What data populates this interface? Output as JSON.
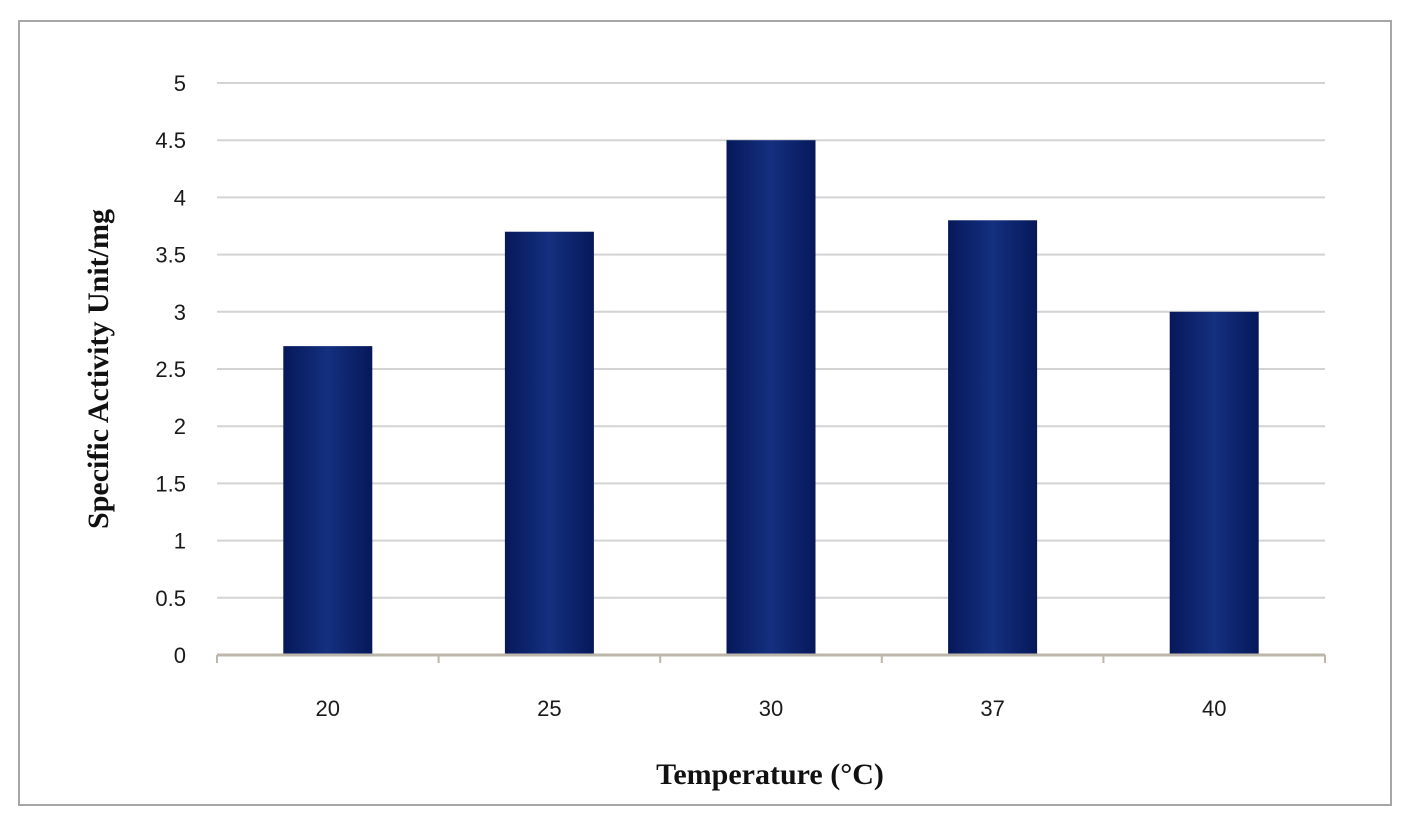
{
  "chart_data": {
    "type": "bar",
    "title": "",
    "xlabel": "Temperature (°C)",
    "ylabel": "Specific Activity Unit/mg",
    "categories": [
      "20",
      "25",
      "30",
      "37",
      "40"
    ],
    "values": [
      2.7,
      3.7,
      4.5,
      3.8,
      3.0
    ],
    "ylim": [
      0,
      5
    ],
    "yticks": [
      "0",
      "0.5",
      "1",
      "1.5",
      "2",
      "2.5",
      "3",
      "3.5",
      "4",
      "4.5",
      "5"
    ],
    "grid": true,
    "legend": "none",
    "bar_color": "#0d2a78",
    "bar_color_dark": "#06185a"
  }
}
